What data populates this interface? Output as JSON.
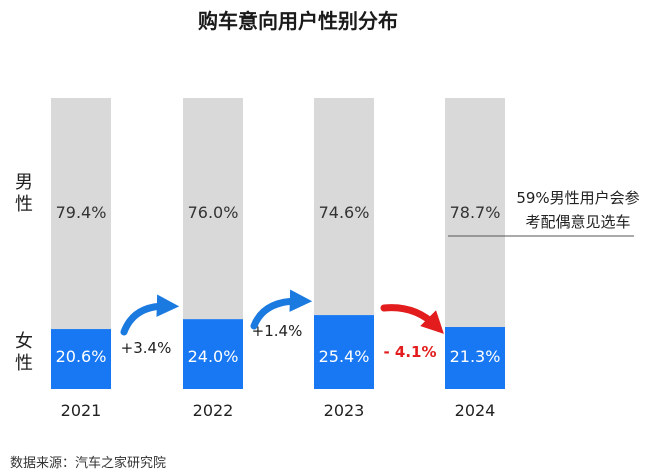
{
  "chart_data": {
    "type": "bar",
    "stacked": true,
    "normalized_percent": true,
    "title": "购车意向用户性别分布",
    "categories": [
      "2021",
      "2022",
      "2023",
      "2024"
    ],
    "series": [
      {
        "name": "女性",
        "values": [
          20.6,
          24.0,
          25.4,
          21.3
        ],
        "labels": [
          "20.6%",
          "24.0%",
          "25.4%",
          "21.3%"
        ],
        "color": "#1877f2"
      },
      {
        "name": "男性",
        "values": [
          79.4,
          76.0,
          74.6,
          78.7
        ],
        "labels": [
          "79.4%",
          "76.0%",
          "74.6%",
          "78.7%"
        ],
        "color": "#d9d9d9"
      }
    ],
    "legend_labels": {
      "male": "男性",
      "female": "女性"
    },
    "changes": [
      {
        "label": "+3.4%",
        "direction": "up",
        "color": "#1b7ae0"
      },
      {
        "label": "+1.4%",
        "direction": "up",
        "color": "#1b7ae0"
      },
      {
        "label": "- 4.1%",
        "direction": "down",
        "color": "#e31d1d"
      }
    ],
    "annotation": "59%男性用户会参考配偶意见选车",
    "annotation_lines": [
      "59%男性用户会参",
      "考配偶意见选车"
    ],
    "ylim": [
      0,
      100
    ],
    "grid": false
  },
  "source": "数据来源：汽车之家研究院"
}
